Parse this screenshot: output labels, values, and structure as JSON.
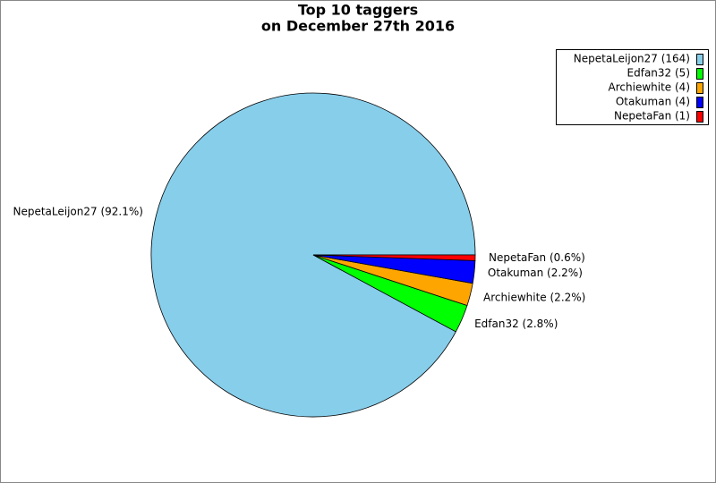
{
  "chart_data": {
    "type": "pie",
    "title": "Top 10 taggers",
    "subtitle": "on December 27th 2016",
    "values": [
      164,
      5,
      4,
      4,
      1
    ],
    "slice_labels": [
      "NepetaLeijon27 (92.1%)",
      "Edfan32 (2.8%)",
      "Archiewhite (2.2%)",
      "Otakuman (2.2%)",
      "NepetaFan (0.6%)"
    ],
    "legend_labels": [
      "NepetaLeijon27 (164)",
      "Edfan32 (5)",
      "Archiewhite (4)",
      "Otakuman (4)",
      "NepetaFan (1)"
    ],
    "colors": [
      "#87ceeb",
      "#00ff00",
      "#ffa500",
      "#0000ff",
      "#ff0000"
    ],
    "legend": "upper right"
  }
}
